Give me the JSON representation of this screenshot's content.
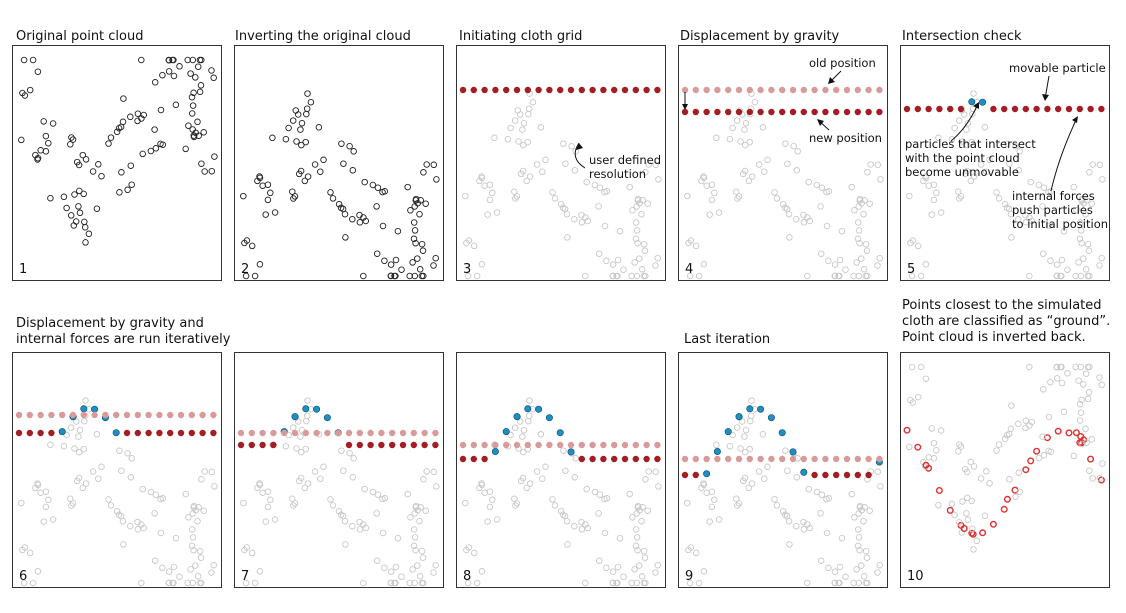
{
  "figure": {
    "titles": {
      "p1": "Original point cloud",
      "p2": "Inverting the original cloud",
      "p3": "Initiating cloth grid",
      "p4": "Displacement by gravity",
      "p5": "Intersection check",
      "row2_left_line1": "Displacement by gravity and",
      "row2_left_line2": "internal forces are run iteratively",
      "p9": "Last iteration",
      "p10_line1": "Points closest to the simulated",
      "p10_line2": "cloth are classified as “ground”.",
      "p10_line3": "Point cloud is inverted back."
    },
    "panel_numbers": [
      "1",
      "2",
      "3",
      "4",
      "5",
      "6",
      "7",
      "8",
      "9",
      "10"
    ],
    "annotations": {
      "user_res_1": "user defined",
      "user_res_2": "resolution",
      "old_position": "old position",
      "new_position": "new position",
      "movable_particle": "movable particle",
      "unmovable_1": "particles that intersect",
      "unmovable_2": "with the point cloud",
      "unmovable_3": "become unmovable",
      "internal_1": "internal forces",
      "internal_2": "push particles",
      "internal_3": "to initial position"
    },
    "colors": {
      "point_dark": "#222222",
      "point_light": "#c8c8c8",
      "particle_movable": "#a41d22",
      "particle_old": "#d99a9a",
      "particle_unmovable": "#1d8fc4",
      "ground_points": "#e03030"
    }
  }
}
